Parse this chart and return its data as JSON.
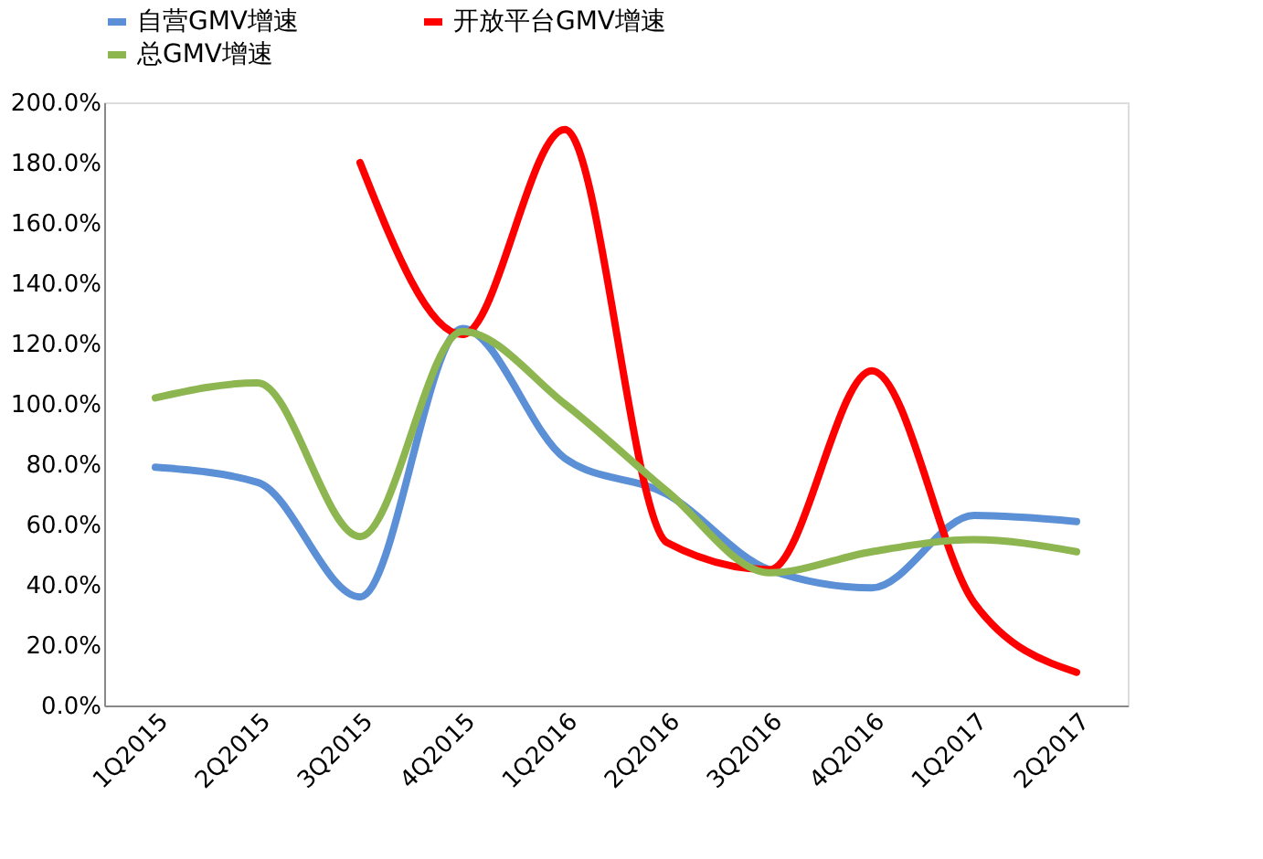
{
  "chart_data": {
    "type": "line",
    "categories": [
      "1Q2015",
      "2Q2015",
      "3Q2015",
      "4Q2015",
      "1Q2016",
      "2Q2016",
      "3Q2016",
      "4Q2016",
      "1Q2017",
      "2Q2017"
    ],
    "series": [
      {
        "name": "自营GMV增速",
        "color": "#5b8fd6",
        "values": [
          79,
          74,
          36,
          125,
          82,
          70,
          45,
          39,
          63,
          61
        ]
      },
      {
        "name": "开放平台GMV增速",
        "color": "#ff0000",
        "values": [
          null,
          null,
          180,
          123,
          191,
          54,
          45,
          111,
          34,
          11
        ]
      },
      {
        "name": "总GMV增速",
        "color": "#8db650",
        "values": [
          102,
          107,
          56,
          124,
          100,
          71,
          44,
          51,
          55,
          51
        ]
      }
    ],
    "ylim": [
      0,
      200
    ],
    "yticks": [
      {
        "value": 0,
        "label": "0.0%"
      },
      {
        "value": 20,
        "label": "20.0%"
      },
      {
        "value": 40,
        "label": "40.0%"
      },
      {
        "value": 60,
        "label": "60.0%"
      },
      {
        "value": 80,
        "label": "80.0%"
      },
      {
        "value": 100,
        "label": "100.0%"
      },
      {
        "value": 120,
        "label": "120.0%"
      },
      {
        "value": 140,
        "label": "140.0%"
      },
      {
        "value": 160,
        "label": "160.0%"
      },
      {
        "value": 180,
        "label": "180.0%"
      },
      {
        "value": 200,
        "label": "200.0%"
      }
    ],
    "grid": false,
    "legend": "top",
    "marker": "none",
    "line_style": "solid"
  }
}
